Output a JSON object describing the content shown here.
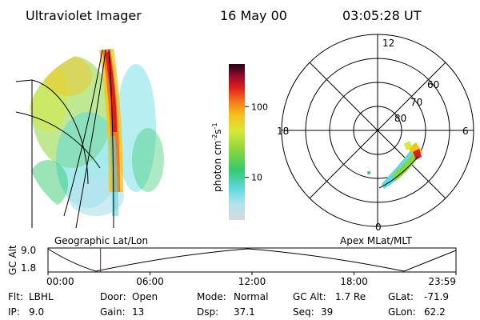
{
  "header": {
    "instrument": "Ultraviolet Imager",
    "date": "16 May 00",
    "time": "03:05:28 UT"
  },
  "colorbar": {
    "label": "photon cm^-2 s^-1",
    "label_base": "photon cm",
    "label_exp1": "-2",
    "label_s": "s",
    "label_exp2": "-1",
    "ticks": [
      {
        "label": "100",
        "value": 100
      },
      {
        "label": "10",
        "value": 10
      }
    ],
    "colors": [
      "#d8d8d8",
      "#b6e3ee",
      "#5fd9e0",
      "#35c96e",
      "#8ad63a",
      "#d8e83a",
      "#f7c21a",
      "#f4781a",
      "#e01c1c",
      "#8b0a2a",
      "#240018"
    ]
  },
  "polar_plot": {
    "mlt_labels": [
      "12",
      "18",
      "6",
      "0"
    ],
    "lat_labels": [
      "60",
      "70",
      "80"
    ]
  },
  "altitude_panel": {
    "ylabel": "GC Alt",
    "yticks": [
      "9.0",
      "1.8"
    ],
    "left_caption": "Geographic Lat/Lon",
    "right_caption": "Apex MLat/MLT",
    "xticks": [
      "00:00",
      "06:00",
      "12:00",
      "18:00",
      "23:59"
    ],
    "current_time_hours": 3.09
  },
  "status": {
    "flt": {
      "label": "Flt:",
      "value": "LBHL"
    },
    "ip": {
      "label": "IP:",
      "value": "9.0"
    },
    "door": {
      "label": "Door:",
      "value": "Open"
    },
    "gain": {
      "label": "Gain:",
      "value": "13"
    },
    "mode": {
      "label": "Mode:",
      "value": "Normal"
    },
    "dsp": {
      "label": "Dsp:",
      "value": "37.1"
    },
    "gcalt": {
      "label": "GC Alt:",
      "value": "1.7 Re"
    },
    "seq": {
      "label": "Seq:",
      "value": "39"
    },
    "glat": {
      "label": "GLat:",
      "value": "-71.9"
    },
    "glon": {
      "label": "GLon:",
      "value": "62.2"
    }
  }
}
